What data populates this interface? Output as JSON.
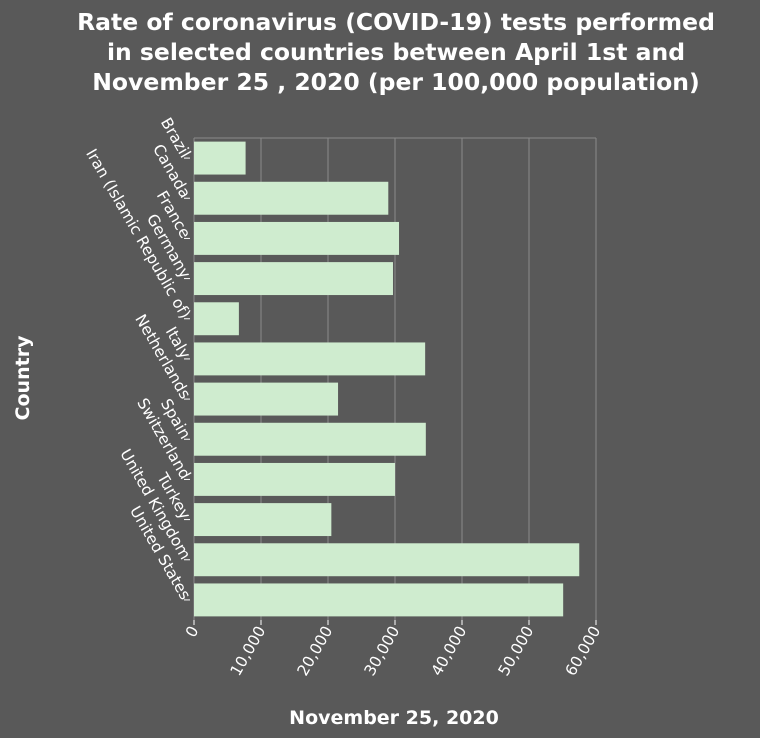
{
  "colors": {
    "background": "#595959",
    "bar": "#cfeccf",
    "grid": "#8a8a8a",
    "text": "#ffffff"
  },
  "chart_data": {
    "type": "bar",
    "orientation": "horizontal",
    "title": "Rate of coronavirus (COVID-19) tests performed in selected countries between April 1st and November 25 , 2020 (per 100,000 population)",
    "title_lines": [
      "Rate of coronavirus (COVID-19) tests performed",
      "in selected countries between April 1st and",
      "November 25 , 2020 (per 100,000 population)"
    ],
    "xlabel": "November 25, 2020",
    "ylabel": "Country",
    "xlim": [
      0,
      60000
    ],
    "xticks": [
      0,
      10000,
      20000,
      30000,
      40000,
      50000,
      60000
    ],
    "xtick_labels": [
      "0",
      "10,000",
      "20,000",
      "30,000",
      "40,000",
      "50,000",
      "60,000"
    ],
    "grid": "vertical",
    "categories": [
      "Brazil",
      "Canada",
      "France",
      "Germany",
      "Iran (Islamic Republic of)",
      "Italy",
      "Netherlands",
      "Spain",
      "Switzerland",
      "Turkey",
      "United Kingdom",
      "United States"
    ],
    "values": [
      7700,
      29000,
      30600,
      29700,
      6700,
      34500,
      21500,
      34600,
      30000,
      20500,
      57500,
      55100
    ]
  }
}
